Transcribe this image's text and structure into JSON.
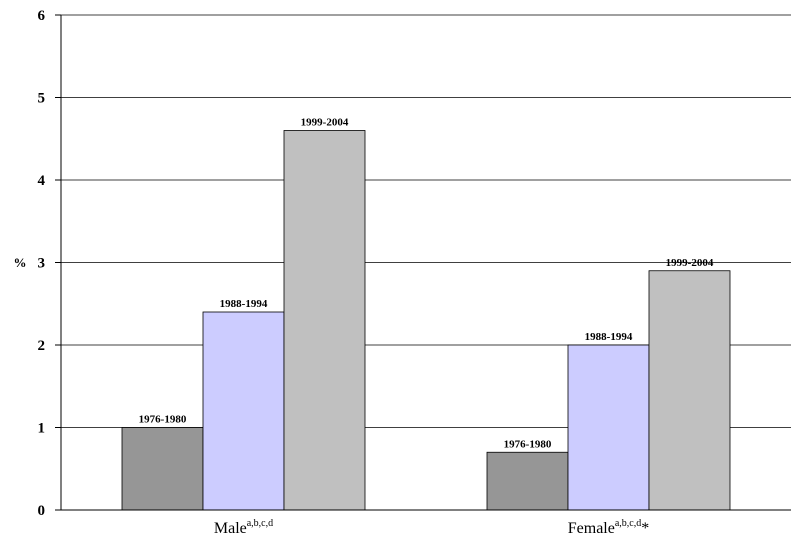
{
  "chart_data": {
    "type": "bar",
    "title": "",
    "xlabel": "",
    "ylabel": "%",
    "ylim": [
      0,
      6
    ],
    "yticks": [
      0,
      1,
      2,
      3,
      4,
      5,
      6
    ],
    "grid": true,
    "categories": [
      {
        "label": "Male",
        "sup": "a,b,c,d",
        "suffix": ""
      },
      {
        "label": "Female",
        "sup": "a,b,c,d",
        "suffix": "*"
      }
    ],
    "series": [
      {
        "name": "1976-1980",
        "color": "#969696",
        "values": [
          1.0,
          0.7
        ]
      },
      {
        "name": "1988-1994",
        "color": "#ccccff",
        "values": [
          2.4,
          2.0
        ]
      },
      {
        "name": "1999-2004",
        "color": "#c0c0c0",
        "values": [
          4.6,
          2.9
        ]
      }
    ]
  }
}
